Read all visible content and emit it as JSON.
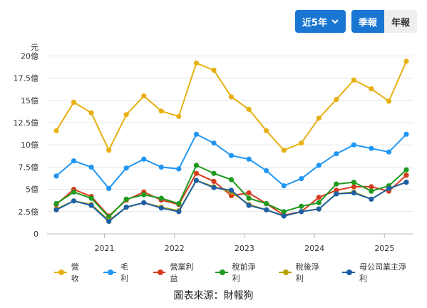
{
  "controls": {
    "range_label": "近5年",
    "quarterly_label": "季報",
    "annual_label": "年報"
  },
  "source_text": "圖表來源：財報狗",
  "chart_data": {
    "type": "line",
    "y_unit": "元",
    "ylim": [
      0,
      21
    ],
    "y_ticks": [
      {
        "value": 0,
        "label": "0"
      },
      {
        "value": 2.5,
        "label": "2.5億"
      },
      {
        "value": 5,
        "label": "5億"
      },
      {
        "value": 7.5,
        "label": "7.5億"
      },
      {
        "value": 10,
        "label": "10億"
      },
      {
        "value": 12.5,
        "label": "12.5億"
      },
      {
        "value": 15,
        "label": "15億"
      },
      {
        "value": 17.5,
        "label": "17.5億"
      },
      {
        "value": 20,
        "label": "20億"
      }
    ],
    "x_labels": [
      {
        "label": "2021",
        "index": 2.75
      },
      {
        "label": "2022",
        "index": 6.75
      },
      {
        "label": "2023",
        "index": 10.75
      },
      {
        "label": "2024",
        "index": 14.75
      },
      {
        "label": "2025",
        "index": 18.75
      }
    ],
    "x_count": 21,
    "series": [
      {
        "name": "營收",
        "color": "#e6b012",
        "values": [
          11.6,
          14.8,
          13.6,
          9.4,
          13.4,
          15.5,
          13.8,
          13.2,
          19.2,
          18.4,
          15.4,
          14.0,
          11.6,
          9.4,
          10.2,
          13.0,
          15.1,
          17.3,
          16.3,
          14.9,
          19.4
        ]
      },
      {
        "name": "毛利",
        "color": "#2196f3",
        "values": [
          6.5,
          8.2,
          7.5,
          5.1,
          7.4,
          8.4,
          7.5,
          7.3,
          11.2,
          10.2,
          8.8,
          8.4,
          7.1,
          5.4,
          6.2,
          7.7,
          9.0,
          10.0,
          9.6,
          9.2,
          11.2
        ]
      },
      {
        "name": "營業利益",
        "color": "#d63c1e",
        "values": [
          3.3,
          5.0,
          4.2,
          2.0,
          3.8,
          4.7,
          3.8,
          3.3,
          6.8,
          5.9,
          4.3,
          4.6,
          3.4,
          2.1,
          2.5,
          4.1,
          4.9,
          5.3,
          5.3,
          4.8,
          6.6
        ]
      },
      {
        "name": "稅前淨利",
        "color": "#1f9a1f",
        "values": [
          3.4,
          4.7,
          4.0,
          1.9,
          3.9,
          4.4,
          4.0,
          3.4,
          7.7,
          6.8,
          6.1,
          4.0,
          3.4,
          2.5,
          3.1,
          3.5,
          5.6,
          5.8,
          4.8,
          5.4,
          7.2
        ]
      },
      {
        "name": "稅後淨利",
        "color": "#b8a000",
        "values": [
          2.8,
          3.7,
          3.3,
          1.5,
          3.0,
          3.5,
          3.0,
          2.6,
          6.0,
          5.3,
          4.7,
          3.3,
          2.7,
          2.0,
          2.5,
          2.8,
          4.5,
          4.7,
          3.9,
          5.1,
          5.8
        ]
      },
      {
        "name": "母公司業主淨利",
        "color": "#1e5fa6",
        "values": [
          2.7,
          3.7,
          3.2,
          1.4,
          3.0,
          3.5,
          2.9,
          2.5,
          6.0,
          5.2,
          4.9,
          3.2,
          2.7,
          2.0,
          2.5,
          2.8,
          4.5,
          4.6,
          3.9,
          5.1,
          5.8
        ]
      }
    ],
    "grid": "horizontal",
    "legend_position": "bottom"
  }
}
